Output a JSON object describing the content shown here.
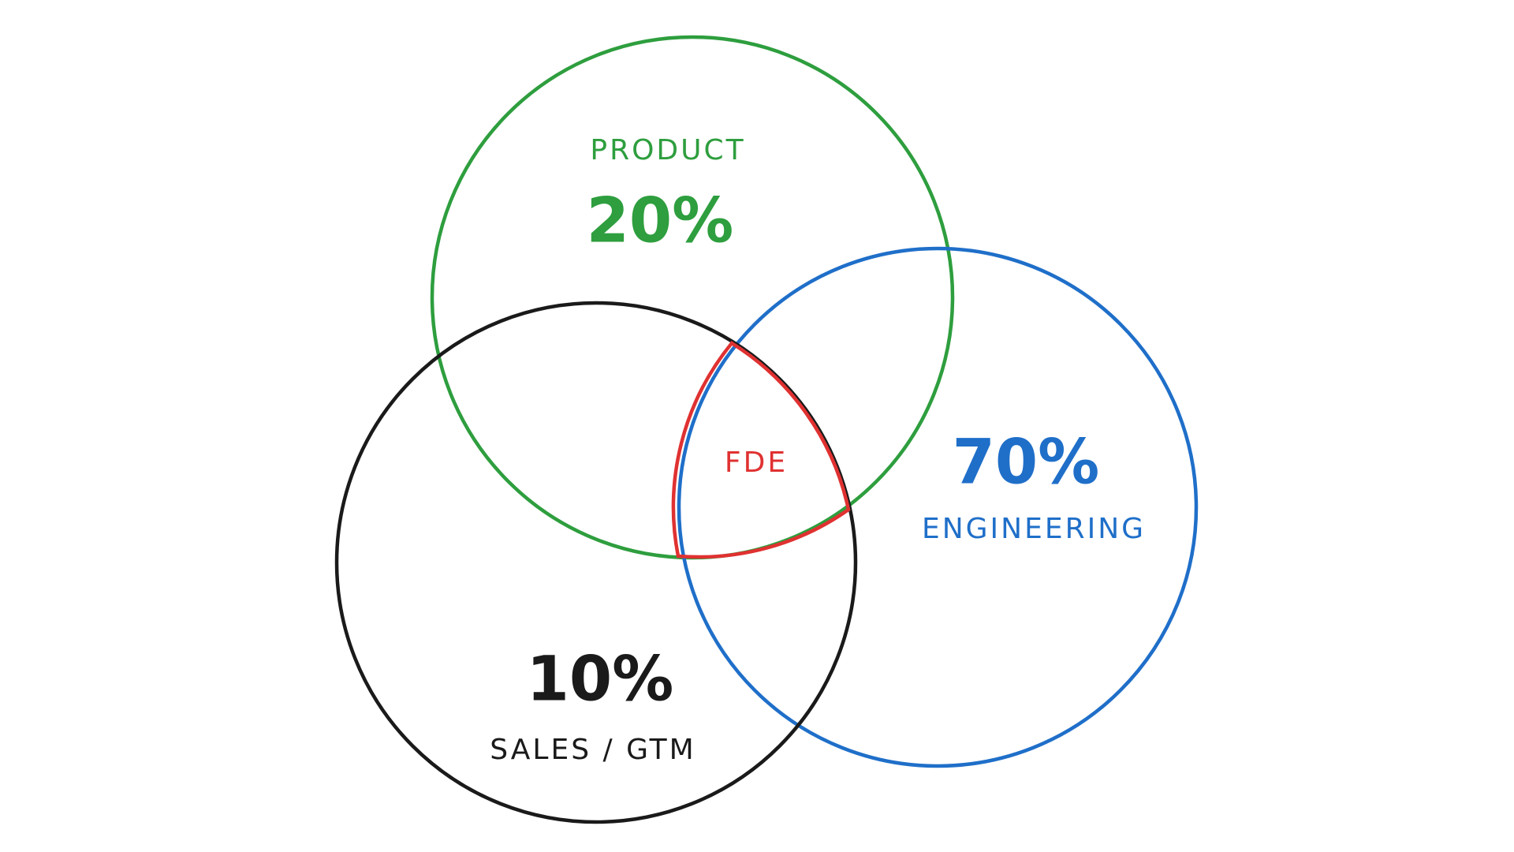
{
  "product": {
    "label": "PRODUCT",
    "share": "20%"
  },
  "engineering": {
    "label": "ENGINEERING",
    "share": "70%"
  },
  "sales": {
    "label": "SALES / GTM",
    "share": "10%"
  },
  "intersection": {
    "label": "FDE"
  }
}
